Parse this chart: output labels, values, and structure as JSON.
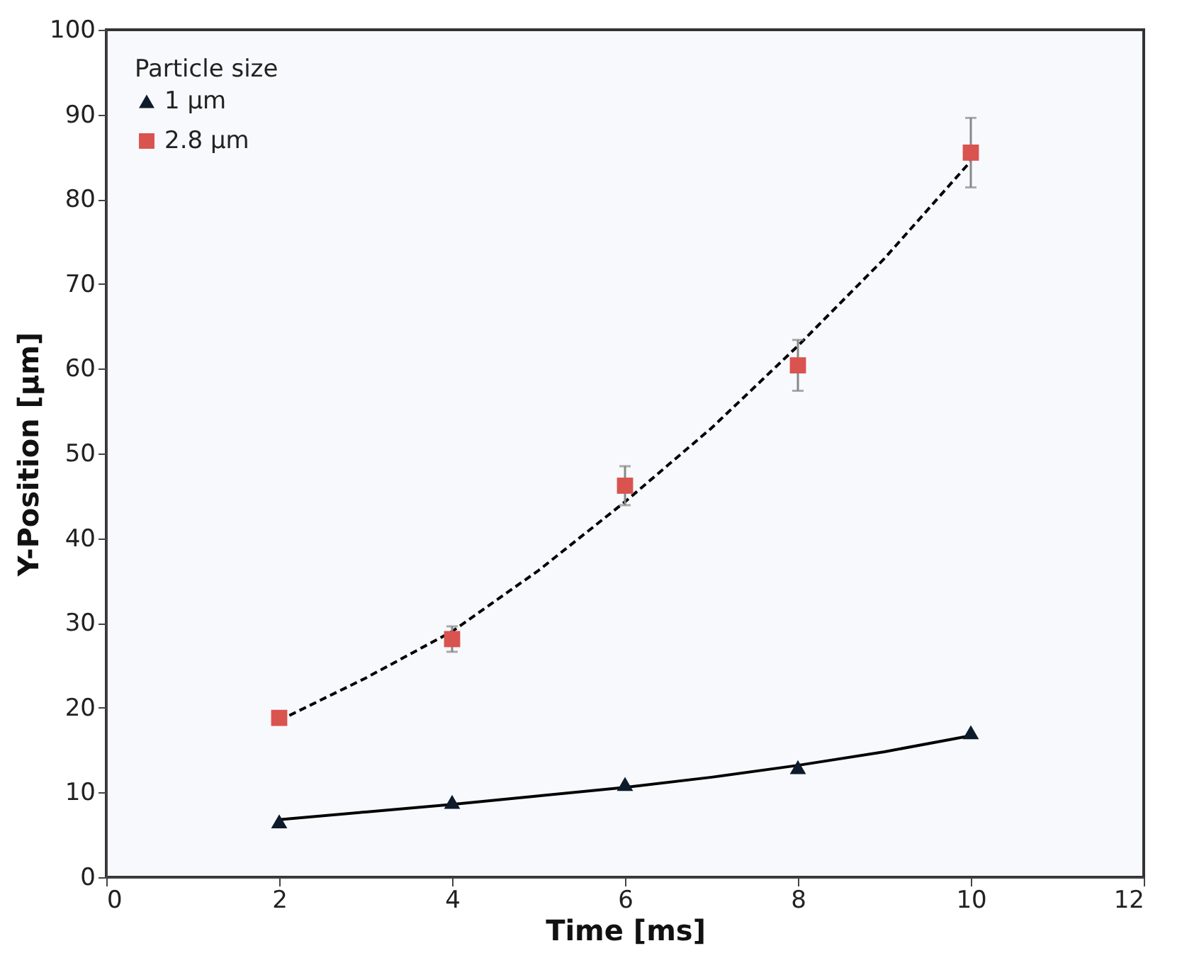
{
  "chart_data": {
    "type": "scatter",
    "xlabel": "Time [ms]",
    "ylabel": "Y-Position  [µm]",
    "legend_title": "Particle size",
    "legend": "top left",
    "xlim": [
      0,
      12
    ],
    "xticks": [
      0,
      2,
      4,
      6,
      8,
      10,
      12
    ],
    "ylim": [
      0,
      100
    ],
    "yticks": [
      0,
      10,
      20,
      30,
      40,
      50,
      60,
      70,
      80,
      90,
      100
    ],
    "grid": false,
    "series": [
      {
        "name": "1 µm",
        "type": "scatter",
        "marker": "triangle",
        "color": "#0d1b2a",
        "x": [
          2,
          4,
          6,
          8,
          10
        ],
        "values": [
          6.6,
          8.9,
          11.0,
          13.0,
          17.1
        ]
      },
      {
        "name": "2.8 µm",
        "type": "scatter",
        "marker": "square",
        "color": "#d9534f",
        "x": [
          2,
          4,
          6,
          8,
          10
        ],
        "values": [
          18.8,
          28.1,
          46.2,
          60.4,
          85.5
        ],
        "errors": [
          null,
          1.5,
          2.3,
          3.0,
          4.1
        ]
      },
      {
        "type": "line",
        "line_style": "solid",
        "marker": "none",
        "color": "#000000",
        "x": [
          2,
          3,
          4,
          5,
          6,
          7,
          8,
          9,
          10
        ],
        "values": [
          6.8,
          7.7,
          8.6,
          9.6,
          10.6,
          11.8,
          13.2,
          14.8,
          16.7
        ]
      },
      {
        "type": "line",
        "line_style": "dashed",
        "marker": "none",
        "color": "#000000",
        "x": [
          2,
          3,
          4,
          5,
          6,
          7,
          8,
          9,
          10
        ],
        "values": [
          18.5,
          23.5,
          29.0,
          36.2,
          44.3,
          53.0,
          62.7,
          73.0,
          84.5
        ]
      }
    ]
  }
}
